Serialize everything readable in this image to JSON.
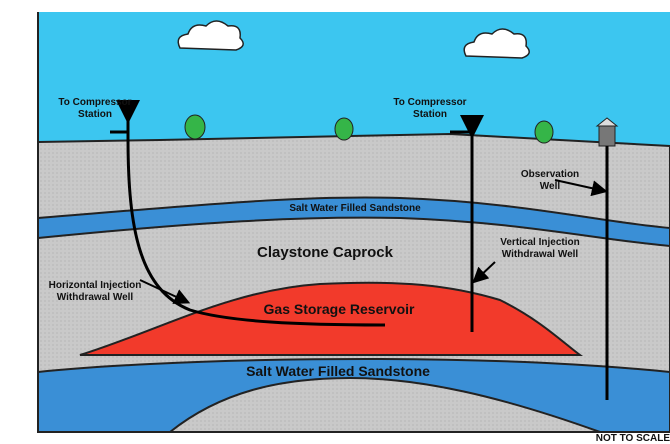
{
  "labels": {
    "compressor_left": [
      "To Compressor",
      "Station"
    ],
    "compressor_right": [
      "To Compressor",
      "Station"
    ],
    "observation_well": [
      "Observation",
      "Well"
    ],
    "upper_sandstone": "Salt Water Filled Sandstone",
    "caprock": "Claystone Caprock",
    "vertical_well": [
      "Vertical Injection",
      "Withdrawal Well"
    ],
    "horizontal_well": [
      "Horizontal Injection",
      "Withdrawal Well"
    ],
    "reservoir": "Gas Storage Reservoir",
    "lower_sandstone": "Salt Water Filled Sandstone",
    "scale_note": "NOT TO SCALE"
  }
}
